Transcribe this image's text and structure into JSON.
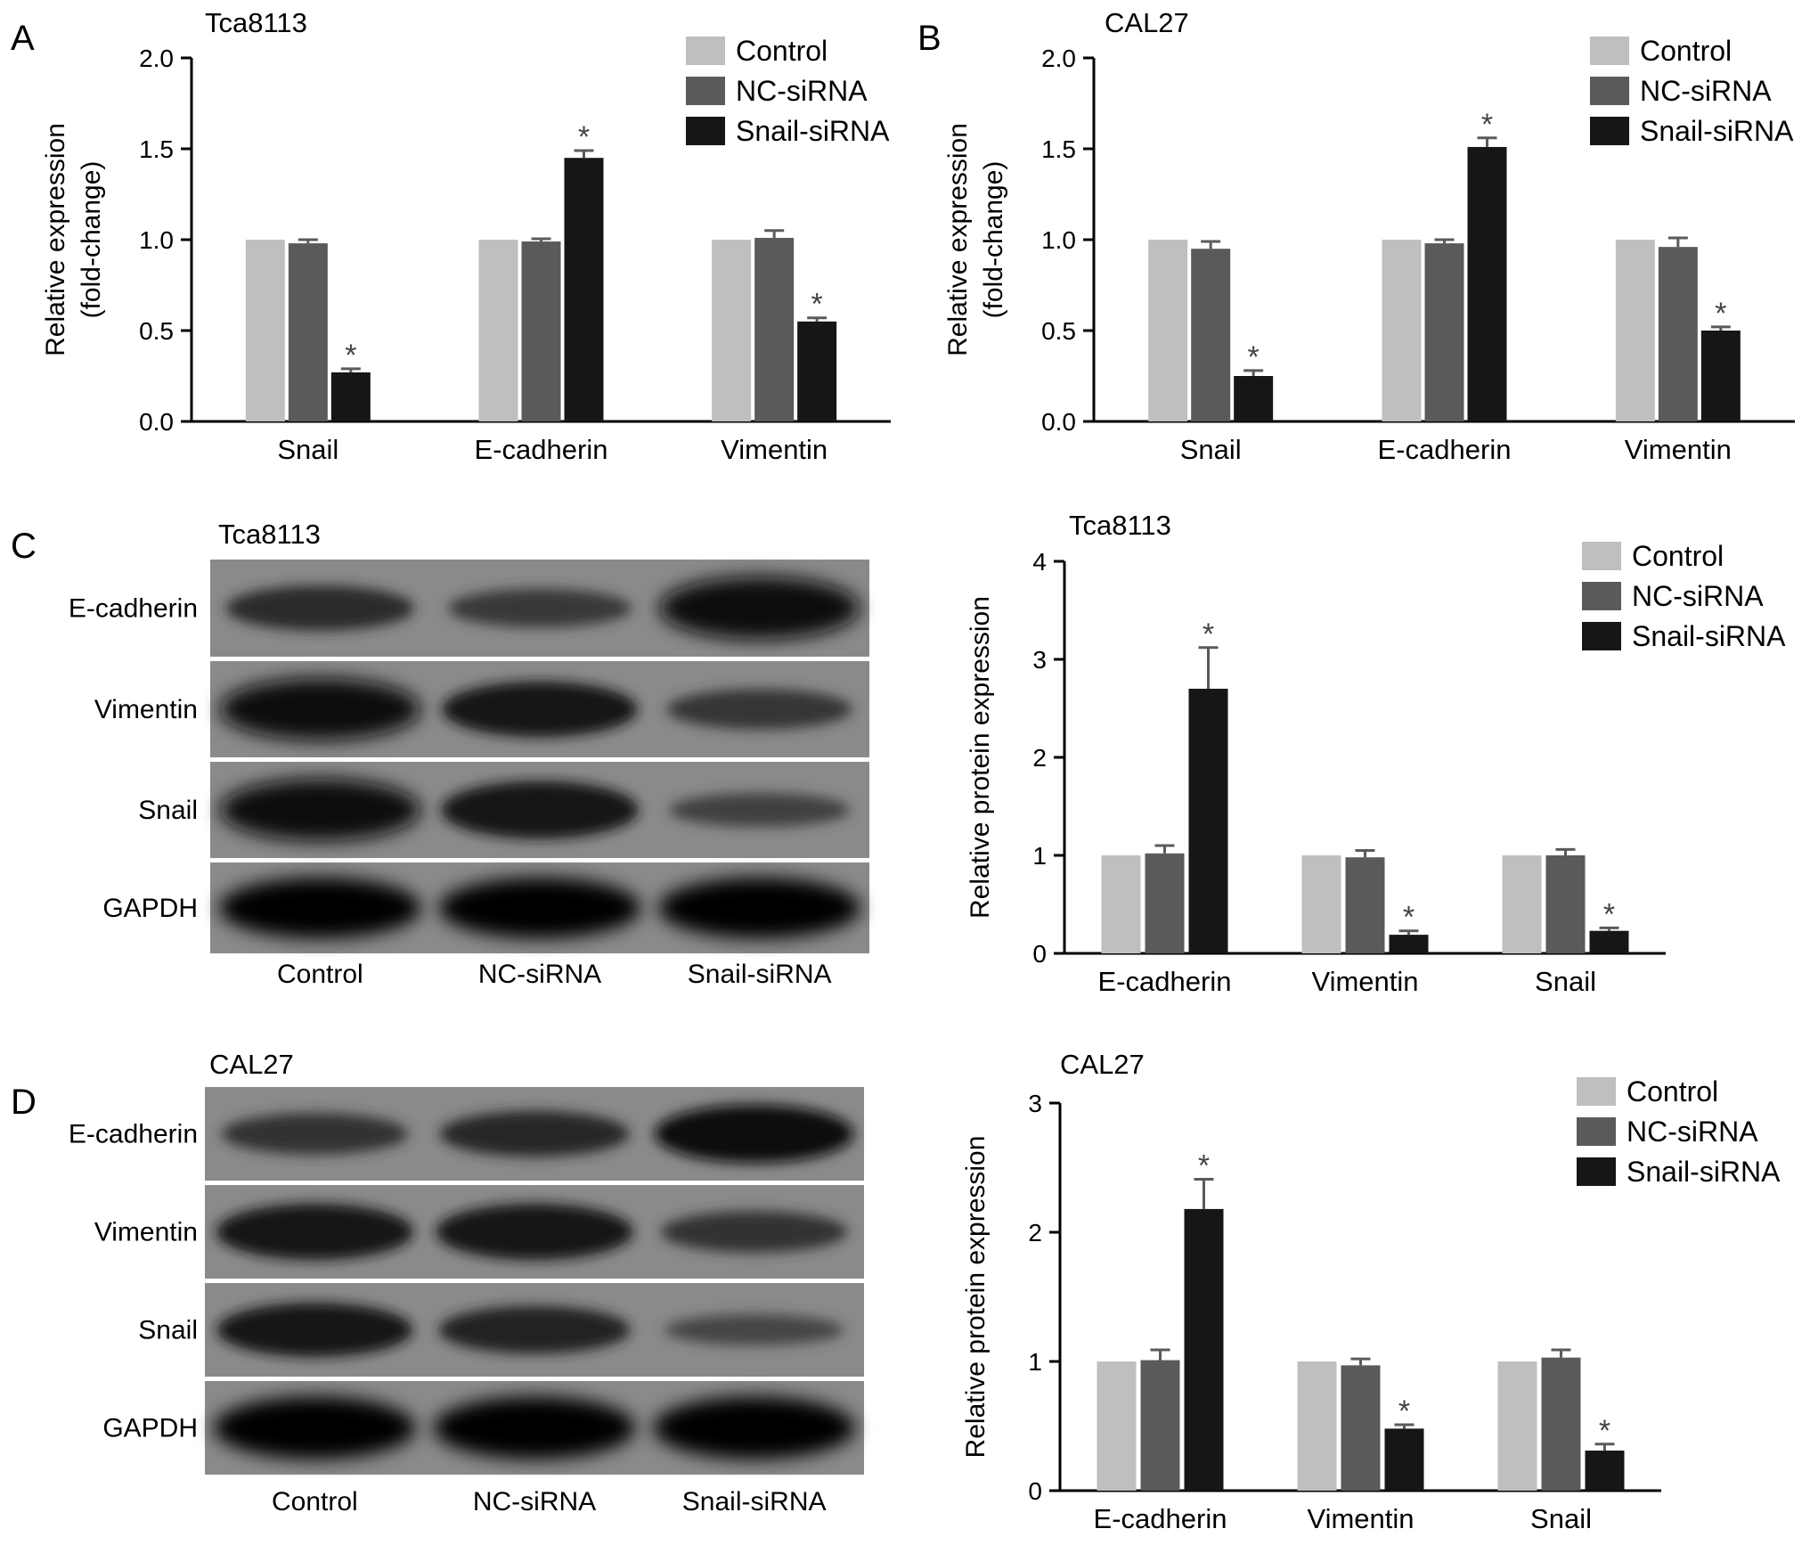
{
  "figure": {
    "panel_letters": [
      "A",
      "B",
      "C",
      "D"
    ],
    "colors": {
      "Control": "#bfbfbf",
      "NC-siRNA": "#5a5a5a",
      "Snail-siRNA": "#161616",
      "errorbar": "#5a5a5a",
      "axis": "#000000"
    }
  },
  "chart_data": [
    {
      "panel": "A",
      "type": "bar",
      "title": "Tca8113",
      "ylabel_lines": [
        "Relative expression",
        "(fold-change)"
      ],
      "categories": [
        "Snail",
        "E-cadherin",
        "Vimentin"
      ],
      "ylim": [
        0,
        2.0
      ],
      "yticks": [
        "0.0",
        "0.5",
        "1.0",
        "1.5",
        "2.0"
      ],
      "ytick_values": [
        0,
        0.5,
        1.0,
        1.5,
        2.0
      ],
      "legend_position": "top-right",
      "series": [
        {
          "name": "Control",
          "values": [
            1.0,
            1.0,
            1.0
          ],
          "errors": [
            0,
            0,
            0
          ]
        },
        {
          "name": "NC-siRNA",
          "values": [
            0.98,
            0.99,
            1.01
          ],
          "errors": [
            0.02,
            0.015,
            0.04
          ]
        },
        {
          "name": "Snail-siRNA",
          "values": [
            0.27,
            1.45,
            0.55
          ],
          "errors": [
            0.02,
            0.04,
            0.02
          ]
        }
      ],
      "significance": "*",
      "significant_series": "Snail-siRNA"
    },
    {
      "panel": "B",
      "type": "bar",
      "title": "CAL27",
      "ylabel_lines": [
        "Relative expression",
        "(fold-change)"
      ],
      "categories": [
        "Snail",
        "E-cadherin",
        "Vimentin"
      ],
      "ylim": [
        0,
        2.0
      ],
      "yticks": [
        "0.0",
        "0.5",
        "1.0",
        "1.5",
        "2.0"
      ],
      "ytick_values": [
        0,
        0.5,
        1.0,
        1.5,
        2.0
      ],
      "legend_position": "top-right",
      "series": [
        {
          "name": "Control",
          "values": [
            1.0,
            1.0,
            1.0
          ],
          "errors": [
            0,
            0,
            0
          ]
        },
        {
          "name": "NC-siRNA",
          "values": [
            0.95,
            0.98,
            0.96
          ],
          "errors": [
            0.04,
            0.02,
            0.05
          ]
        },
        {
          "name": "Snail-siRNA",
          "values": [
            0.25,
            1.51,
            0.5
          ],
          "errors": [
            0.03,
            0.05,
            0.02
          ]
        }
      ],
      "significance": "*",
      "significant_series": "Snail-siRNA"
    },
    {
      "panel": "C",
      "type": "bar",
      "title": "Tca8113",
      "ylabel_lines": [
        "Relative protein expression"
      ],
      "categories": [
        "E-cadherin",
        "Vimentin",
        "Snail"
      ],
      "ylim": [
        0,
        4
      ],
      "yticks": [
        "0",
        "1",
        "2",
        "3",
        "4"
      ],
      "ytick_values": [
        0,
        1,
        2,
        3,
        4
      ],
      "legend_position": "top-right",
      "series": [
        {
          "name": "Control",
          "values": [
            1.0,
            1.0,
            1.0
          ],
          "errors": [
            0,
            0,
            0
          ]
        },
        {
          "name": "NC-siRNA",
          "values": [
            1.02,
            0.98,
            1.0
          ],
          "errors": [
            0.08,
            0.07,
            0.06
          ]
        },
        {
          "name": "Snail-siRNA",
          "values": [
            2.7,
            0.19,
            0.23
          ],
          "errors": [
            0.42,
            0.04,
            0.03
          ]
        }
      ],
      "significance": "*",
      "significant_series": "Snail-siRNA"
    },
    {
      "panel": "D",
      "type": "bar",
      "title": "CAL27",
      "ylabel_lines": [
        "Relative protein expression"
      ],
      "categories": [
        "E-cadherin",
        "Vimentin",
        "Snail"
      ],
      "ylim": [
        0,
        3
      ],
      "yticks": [
        "0",
        "1",
        "2",
        "3"
      ],
      "ytick_values": [
        0,
        1,
        2,
        3
      ],
      "legend_position": "top-right",
      "series": [
        {
          "name": "Control",
          "values": [
            1.0,
            1.0,
            1.0
          ],
          "errors": [
            0,
            0,
            0
          ]
        },
        {
          "name": "NC-siRNA",
          "values": [
            1.01,
            0.97,
            1.03
          ],
          "errors": [
            0.08,
            0.05,
            0.06
          ]
        },
        {
          "name": "Snail-siRNA",
          "values": [
            2.18,
            0.48,
            0.31
          ],
          "errors": [
            0.23,
            0.03,
            0.05
          ]
        }
      ],
      "significance": "*",
      "significant_series": "Snail-siRNA"
    }
  ],
  "blots": [
    {
      "panel": "C",
      "title": "Tca8113",
      "rows": [
        "E-cadherin",
        "Vimentin",
        "Snail",
        "GAPDH"
      ],
      "lanes": [
        "Control",
        "NC-siRNA",
        "Snail-siRNA"
      ],
      "band_intensity": [
        [
          0.55,
          0.4,
          0.95
        ],
        [
          0.95,
          0.8,
          0.45
        ],
        [
          0.95,
          0.85,
          0.3
        ],
        [
          1.0,
          1.0,
          1.0
        ]
      ]
    },
    {
      "panel": "D",
      "title": "CAL27",
      "rows": [
        "E-cadherin",
        "Vimentin",
        "Snail",
        "GAPDH"
      ],
      "lanes": [
        "Control",
        "NC-siRNA",
        "Snail-siRNA"
      ],
      "band_intensity": [
        [
          0.5,
          0.6,
          0.9
        ],
        [
          0.85,
          0.85,
          0.5
        ],
        [
          0.8,
          0.65,
          0.25
        ],
        [
          1.0,
          1.0,
          1.0
        ]
      ]
    }
  ]
}
